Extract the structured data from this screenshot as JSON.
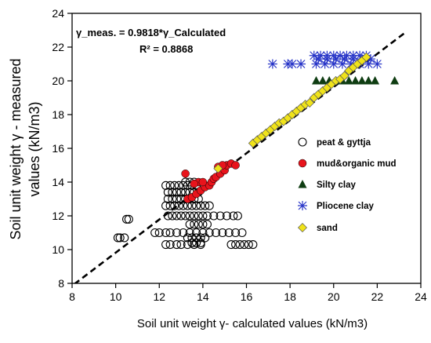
{
  "chart_data": {
    "type": "scatter",
    "xlabel": "Soil unit weight γ- calculated values (kN/m3)",
    "ylabel_line1": "Soil unit weight γ - measured",
    "ylabel_line2": "values  (kN/m3)",
    "xlim": [
      8,
      24
    ],
    "ylim": [
      8,
      24
    ],
    "xticks": [
      "8",
      "10",
      "12",
      "14",
      "16",
      "18",
      "20",
      "22",
      "24"
    ],
    "yticks": [
      "8",
      "10",
      "12",
      "14",
      "16",
      "18",
      "20",
      "22",
      "24"
    ],
    "grid": false,
    "legend_position": "right",
    "equation": "γ_meas. = 0.9818*γ_Calculated",
    "r_squared": "R² = 0.8868",
    "fit_line": {
      "slope": 0.9818,
      "x_range": [
        8.1,
        23.3
      ],
      "style": "dashed"
    },
    "series": [
      {
        "name": "peat & gyttja",
        "marker": "open-circle",
        "color": "#000000",
        "points": [
          [
            10.1,
            10.7
          ],
          [
            10.2,
            10.7
          ],
          [
            10.4,
            10.7
          ],
          [
            10.5,
            11.8
          ],
          [
            10.6,
            11.8
          ],
          [
            11.8,
            11.0
          ],
          [
            12.0,
            11.0
          ],
          [
            12.3,
            11.0
          ],
          [
            12.5,
            11.0
          ],
          [
            12.8,
            11.0
          ],
          [
            13.1,
            11.0
          ],
          [
            13.4,
            11.0
          ],
          [
            13.7,
            11.0
          ],
          [
            14.0,
            11.0
          ],
          [
            14.3,
            11.0
          ],
          [
            14.6,
            11.0
          ],
          [
            14.9,
            11.0
          ],
          [
            15.2,
            11.0
          ],
          [
            15.5,
            11.0
          ],
          [
            15.8,
            11.0
          ],
          [
            12.3,
            10.3
          ],
          [
            12.5,
            10.3
          ],
          [
            12.8,
            10.3
          ],
          [
            13.0,
            10.3
          ],
          [
            13.3,
            10.3
          ],
          [
            13.6,
            10.3
          ],
          [
            13.9,
            10.3
          ],
          [
            15.3,
            10.3
          ],
          [
            15.5,
            10.3
          ],
          [
            15.7,
            10.3
          ],
          [
            15.9,
            10.3
          ],
          [
            16.1,
            10.3
          ],
          [
            16.3,
            10.3
          ],
          [
            12.4,
            12.0
          ],
          [
            12.6,
            12.0
          ],
          [
            12.8,
            12.0
          ],
          [
            13.0,
            12.0
          ],
          [
            13.2,
            12.0
          ],
          [
            13.4,
            12.0
          ],
          [
            13.6,
            12.0
          ],
          [
            13.8,
            12.0
          ],
          [
            14.0,
            12.0
          ],
          [
            14.2,
            12.0
          ],
          [
            14.5,
            12.0
          ],
          [
            14.8,
            12.0
          ],
          [
            15.1,
            12.0
          ],
          [
            15.4,
            12.0
          ],
          [
            15.6,
            12.0
          ],
          [
            12.3,
            12.6
          ],
          [
            12.5,
            12.6
          ],
          [
            12.7,
            12.6
          ],
          [
            12.9,
            12.6
          ],
          [
            13.1,
            12.6
          ],
          [
            13.3,
            12.6
          ],
          [
            13.5,
            12.6
          ],
          [
            13.7,
            12.6
          ],
          [
            13.9,
            12.6
          ],
          [
            14.1,
            12.6
          ],
          [
            14.3,
            12.6
          ],
          [
            12.4,
            13.0
          ],
          [
            12.6,
            13.0
          ],
          [
            12.8,
            13.0
          ],
          [
            13.0,
            13.0
          ],
          [
            13.2,
            13.0
          ],
          [
            13.4,
            13.0
          ],
          [
            13.6,
            13.0
          ],
          [
            13.8,
            13.0
          ],
          [
            12.4,
            13.4
          ],
          [
            12.6,
            13.4
          ],
          [
            12.8,
            13.4
          ],
          [
            13.0,
            13.4
          ],
          [
            13.2,
            13.4
          ],
          [
            13.4,
            13.4
          ],
          [
            13.6,
            13.4
          ],
          [
            13.8,
            13.4
          ],
          [
            12.3,
            13.8
          ],
          [
            12.5,
            13.8
          ],
          [
            12.7,
            13.8
          ],
          [
            12.9,
            13.8
          ],
          [
            13.1,
            13.8
          ],
          [
            13.3,
            13.8
          ],
          [
            13.5,
            13.8
          ],
          [
            13.7,
            13.8
          ],
          [
            13.2,
            14.0
          ],
          [
            13.4,
            14.0
          ],
          [
            13.6,
            14.0
          ],
          [
            13.3,
            10.7
          ],
          [
            13.5,
            10.7
          ],
          [
            13.7,
            10.7
          ],
          [
            13.9,
            10.7
          ],
          [
            14.1,
            10.7
          ],
          [
            13.4,
            11.5
          ],
          [
            13.6,
            11.5
          ],
          [
            13.8,
            11.5
          ],
          [
            14.0,
            11.5
          ],
          [
            14.2,
            11.5
          ],
          [
            13.5,
            10.4
          ],
          [
            13.7,
            10.4
          ],
          [
            13.9,
            10.4
          ]
        ]
      },
      {
        "name": "mud&organic mud",
        "marker": "filled-circle",
        "color": "#e8141c",
        "points": [
          [
            13.2,
            14.5
          ],
          [
            13.3,
            13.0
          ],
          [
            13.5,
            13.1
          ],
          [
            13.7,
            13.3
          ],
          [
            13.9,
            13.5
          ],
          [
            14.1,
            13.7
          ],
          [
            14.3,
            13.8
          ],
          [
            14.4,
            14.0
          ],
          [
            14.5,
            14.2
          ],
          [
            14.6,
            14.3
          ],
          [
            14.8,
            14.5
          ],
          [
            15.0,
            14.7
          ],
          [
            15.1,
            15.0
          ],
          [
            15.3,
            15.1
          ],
          [
            15.5,
            15.0
          ],
          [
            14.7,
            14.9
          ],
          [
            14.9,
            15.0
          ],
          [
            13.8,
            14.0
          ],
          [
            14.0,
            14.0
          ],
          [
            13.6,
            13.9
          ]
        ]
      },
      {
        "name": "Silty clay",
        "marker": "filled-triangle",
        "color": "#0f3d12",
        "points": [
          [
            19.2,
            20.0
          ],
          [
            19.5,
            20.0
          ],
          [
            19.8,
            20.0
          ],
          [
            20.1,
            20.0
          ],
          [
            20.4,
            20.0
          ],
          [
            20.7,
            20.0
          ],
          [
            21.0,
            20.0
          ],
          [
            21.3,
            20.0
          ],
          [
            21.6,
            20.0
          ],
          [
            21.9,
            20.0
          ],
          [
            22.8,
            20.0
          ]
        ]
      },
      {
        "name": "Pliocene clay",
        "marker": "star",
        "color": "#2936c8",
        "points": [
          [
            17.2,
            21.0
          ],
          [
            17.9,
            21.0
          ],
          [
            18.1,
            21.0
          ],
          [
            18.5,
            21.0
          ],
          [
            19.2,
            21.0
          ],
          [
            19.6,
            21.0
          ],
          [
            20.0,
            21.0
          ],
          [
            20.4,
            21.0
          ],
          [
            20.8,
            21.0
          ],
          [
            21.2,
            21.0
          ],
          [
            21.6,
            21.0
          ],
          [
            22.0,
            21.0
          ],
          [
            19.3,
            21.3
          ],
          [
            19.7,
            21.3
          ],
          [
            20.1,
            21.3
          ],
          [
            20.5,
            21.3
          ],
          [
            20.9,
            21.3
          ],
          [
            21.3,
            21.3
          ],
          [
            21.7,
            21.3
          ],
          [
            19.1,
            21.5
          ],
          [
            19.4,
            21.5
          ],
          [
            19.7,
            21.5
          ],
          [
            20.0,
            21.5
          ],
          [
            20.3,
            21.5
          ],
          [
            20.6,
            21.5
          ],
          [
            20.9,
            21.5
          ],
          [
            21.2,
            21.5
          ],
          [
            21.5,
            21.5
          ]
        ]
      },
      {
        "name": "sand",
        "marker": "diamond",
        "color": "#f0e31a",
        "points": [
          [
            14.7,
            14.8
          ],
          [
            16.3,
            16.3
          ],
          [
            16.5,
            16.5
          ],
          [
            16.7,
            16.7
          ],
          [
            16.9,
            16.9
          ],
          [
            17.1,
            17.1
          ],
          [
            17.3,
            17.3
          ],
          [
            17.5,
            17.5
          ],
          [
            17.7,
            17.6
          ],
          [
            17.9,
            17.8
          ],
          [
            18.1,
            18.0
          ],
          [
            18.3,
            18.2
          ],
          [
            18.5,
            18.4
          ],
          [
            18.7,
            18.6
          ],
          [
            18.9,
            18.7
          ],
          [
            19.1,
            19.0
          ],
          [
            19.3,
            19.2
          ],
          [
            19.5,
            19.4
          ],
          [
            19.7,
            19.6
          ],
          [
            19.9,
            19.8
          ],
          [
            20.1,
            20.0
          ],
          [
            20.3,
            20.1
          ],
          [
            20.5,
            20.3
          ],
          [
            20.7,
            20.6
          ],
          [
            20.9,
            20.8
          ],
          [
            21.1,
            21.0
          ],
          [
            21.3,
            21.2
          ],
          [
            21.5,
            21.4
          ]
        ]
      }
    ]
  }
}
